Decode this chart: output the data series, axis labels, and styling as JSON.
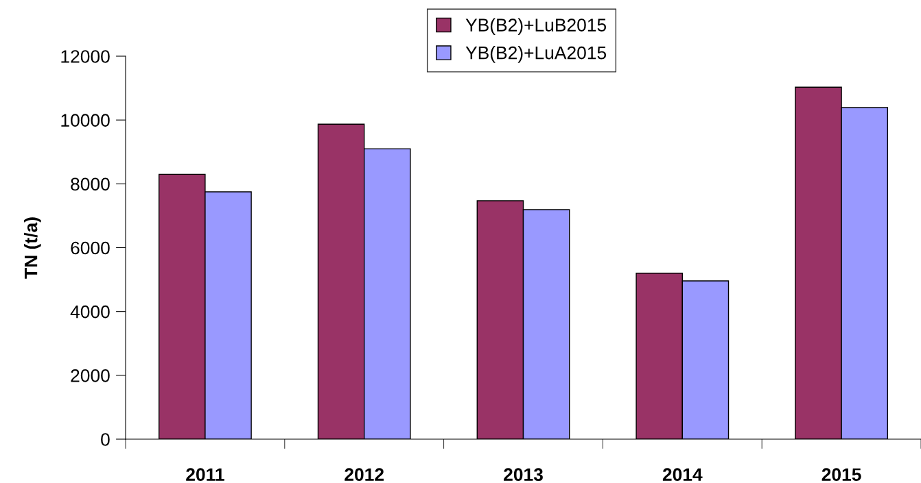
{
  "chart_data": {
    "type": "bar",
    "ylabel": "TN (t/a)",
    "categories": [
      "2011",
      "2012",
      "2013",
      "2014",
      "2015"
    ],
    "series": [
      {
        "name": "YB(B2)+LuB2015",
        "color": "#993366",
        "values": [
          8300,
          9870,
          7470,
          5200,
          11030
        ]
      },
      {
        "name": "YB(B2)+LuA2015",
        "color": "#9999ff",
        "values": [
          7750,
          9100,
          7190,
          4960,
          10390
        ]
      }
    ],
    "ylim": [
      0,
      12000
    ],
    "yticks": [
      0,
      2000,
      4000,
      6000,
      8000,
      10000,
      12000
    ],
    "grid": false,
    "legend": "top"
  }
}
